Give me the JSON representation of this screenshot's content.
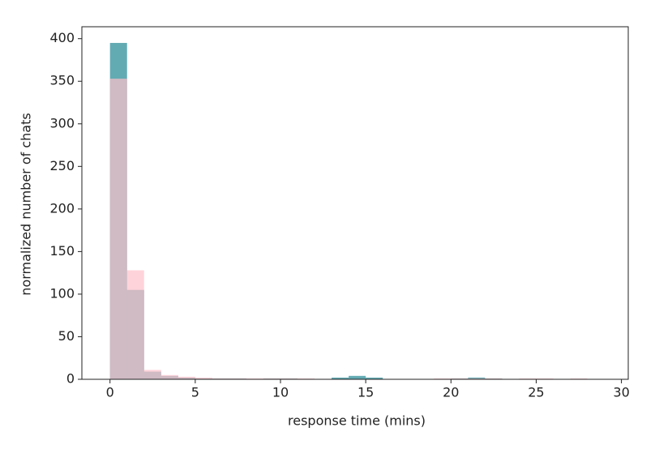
{
  "chart_data": {
    "type": "histogram",
    "xlabel": "response time (mins)",
    "ylabel": "normalized number of chats",
    "bins": [
      0,
      1,
      2,
      3,
      4,
      5,
      6,
      7,
      8,
      9,
      10,
      11,
      12,
      13,
      14,
      15,
      16,
      17,
      18,
      19,
      20,
      21,
      22,
      23,
      24,
      25,
      26,
      27,
      28,
      29,
      30
    ],
    "series": [
      {
        "color": "#2f8f9a",
        "opacity": 0.75,
        "values": [
          395,
          105,
          9,
          4,
          2,
          1,
          1,
          1,
          0,
          1,
          1,
          0,
          0,
          2,
          4,
          2,
          0,
          0,
          0,
          0,
          1,
          2,
          1,
          0,
          0,
          0,
          0,
          0,
          0,
          0
        ]
      },
      {
        "color": "#ffc0cb",
        "opacity": 0.7,
        "values": [
          353,
          128,
          11,
          5,
          3,
          2,
          1,
          1,
          1,
          1,
          1,
          1,
          0,
          0,
          0,
          0,
          0,
          0,
          0,
          1,
          1,
          1,
          1,
          0,
          1,
          1,
          0,
          1,
          0,
          0
        ]
      }
    ],
    "xlim": [
      -1.65,
      30.4
    ],
    "ylim": [
      0,
      414
    ],
    "xticks": [
      0,
      5,
      10,
      15,
      20,
      25,
      30
    ],
    "yticks": [
      0,
      50,
      100,
      150,
      200,
      250,
      300,
      350,
      400
    ]
  }
}
